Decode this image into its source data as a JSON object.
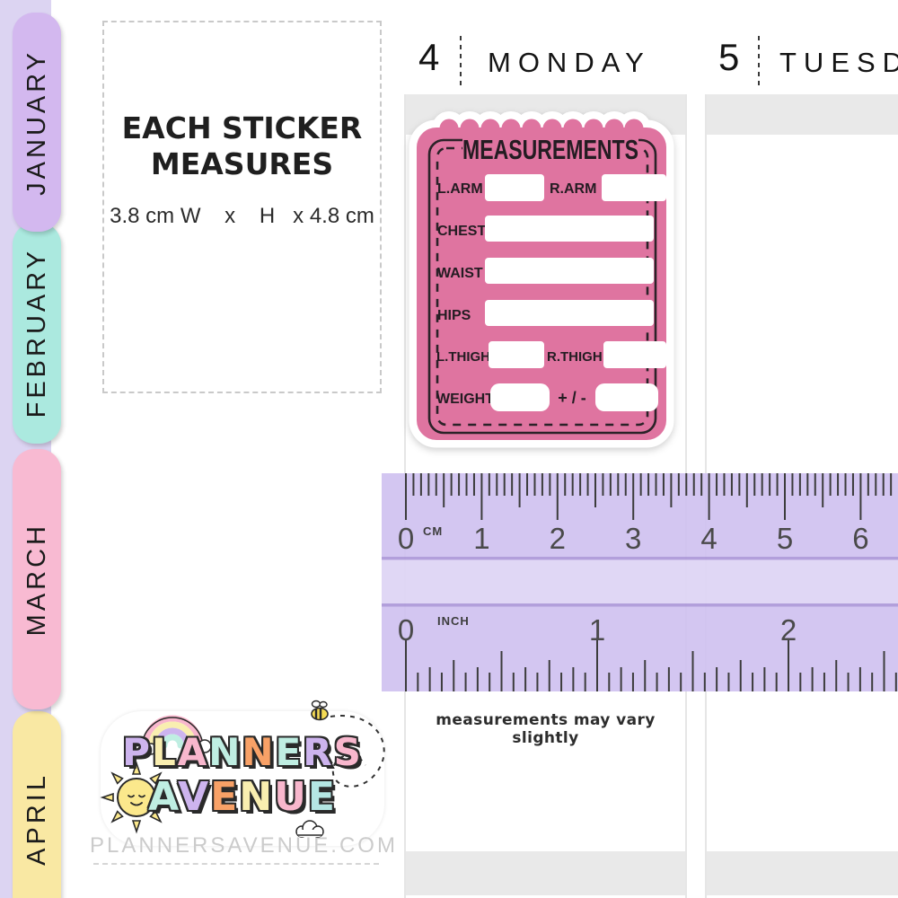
{
  "tabs": [
    {
      "label": "JANUARY",
      "color": "#d3b8ef"
    },
    {
      "label": "FEBRUARY",
      "color": "#abe9df"
    },
    {
      "label": "MARCH",
      "color": "#f8bad2"
    },
    {
      "label": "APRIL",
      "color": "#f9e8a3"
    }
  ],
  "info_box": {
    "title_line1": "EACH STICKER",
    "title_line2": "MEASURES",
    "dimensions": "3.8 cm W    x    H   x 4.8 cm"
  },
  "planner": {
    "days": [
      {
        "number": "4",
        "name": "MONDAY"
      },
      {
        "number": "5",
        "name": "TUESDAY"
      }
    ],
    "header_bar_color": "#e9e9e9"
  },
  "sticker": {
    "title": "MEASUREMENTS",
    "color": "#df74a0",
    "rows": {
      "r1_left": "L.ARM",
      "r1_right": "R.ARM",
      "r2": "CHEST",
      "r3": "WAIST",
      "r4": "HIPS",
      "r5_left": "L.THIGH",
      "r5_right": "R.THIGH",
      "r6_label": "WEIGHT",
      "r6_plusminus": "+ / -"
    }
  },
  "ruler": {
    "color": "#cec0f0",
    "cm_unit": "CM",
    "cm_numbers": [
      "0",
      "1",
      "2",
      "3",
      "4",
      "5",
      "6"
    ],
    "inch_unit": "INCH",
    "inch_numbers": [
      "0",
      "1",
      "2"
    ]
  },
  "note": "measurements may vary slightly",
  "logo": {
    "line1": [
      {
        "ch": "P",
        "color": "#cdb4ee"
      },
      {
        "ch": "L",
        "color": "#f9eeb0"
      },
      {
        "ch": "A",
        "color": "#f8b7cd"
      },
      {
        "ch": "N",
        "color": "#bfeee2"
      },
      {
        "ch": "N",
        "color": "#f8a167"
      },
      {
        "ch": "E",
        "color": "#bfeee2"
      },
      {
        "ch": "R",
        "color": "#cdb4ee"
      },
      {
        "ch": "S",
        "color": "#f8b7cd"
      }
    ],
    "line2": [
      {
        "ch": "A",
        "color": "#bfeee2"
      },
      {
        "ch": "V",
        "color": "#cdb4ee"
      },
      {
        "ch": "E",
        "color": "#f8a167"
      },
      {
        "ch": "N",
        "color": "#f9eeb0"
      },
      {
        "ch": "U",
        "color": "#f8b7cd"
      },
      {
        "ch": "E",
        "color": "#b4e6e3"
      }
    ],
    "website": "PLANNERSAVENUE.COM"
  }
}
